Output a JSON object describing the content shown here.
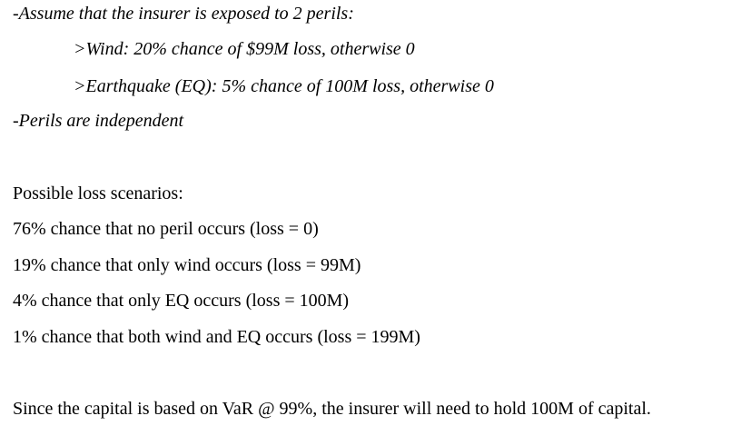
{
  "assumptions": {
    "intro": "-Assume that the insurer is exposed to 2 perils:",
    "wind": ">Wind: 20% chance of $99M loss, otherwise 0",
    "earthquake": ">Earthquake (EQ): 5% chance of 100M loss, otherwise 0",
    "independence": "-Perils are independent"
  },
  "scenarios": {
    "heading": "Possible loss scenarios:",
    "items": [
      "76% chance that no peril occurs (loss = 0)",
      "19% chance that only wind occurs (loss = 99M)",
      "4% chance that only EQ occurs (loss = 100M)",
      "1% chance that both wind and EQ occurs (loss = 199M)"
    ]
  },
  "conclusion": "Since the capital is based on VaR @ 99%, the insurer will need to hold 100M of capital."
}
